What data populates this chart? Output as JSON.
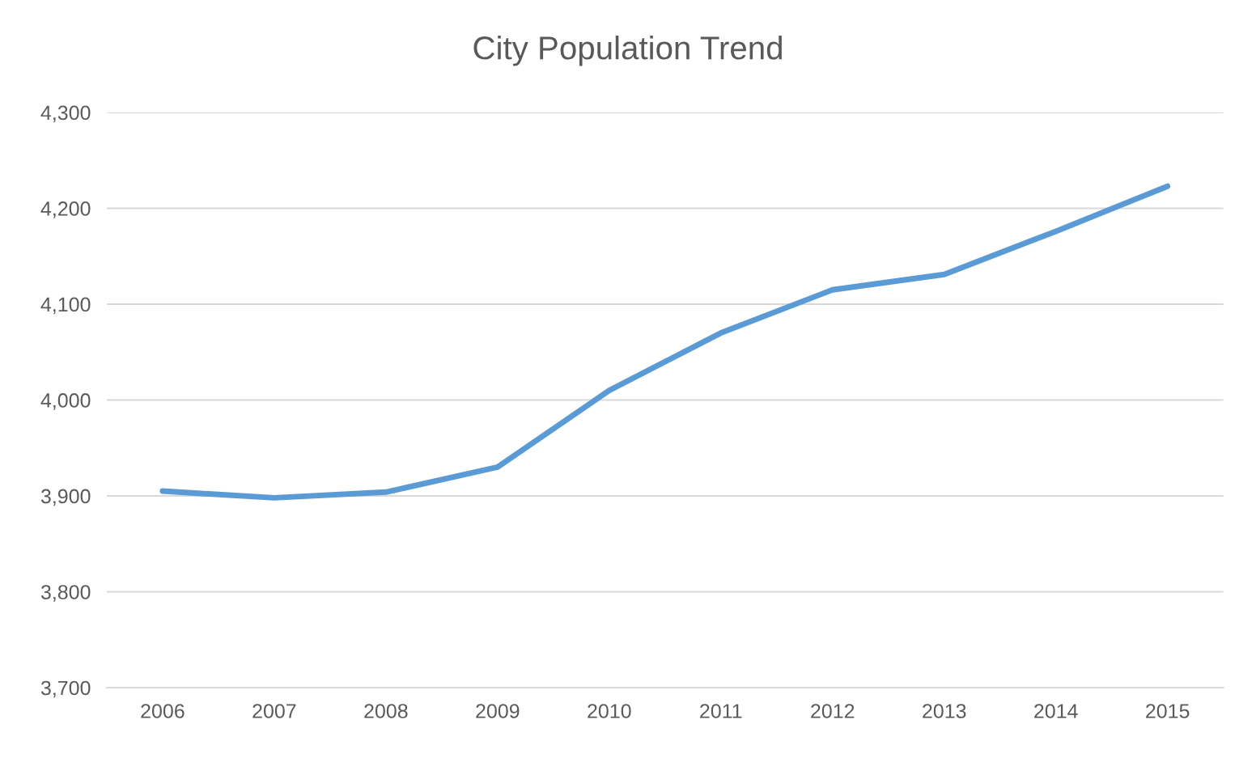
{
  "chart_data": {
    "type": "line",
    "title": "City Population Trend",
    "categories": [
      "2006",
      "2007",
      "2008",
      "2009",
      "2010",
      "2011",
      "2012",
      "2013",
      "2014",
      "2015"
    ],
    "series": [
      {
        "color": "#5b9bd5",
        "values": [
          3905,
          3898,
          3904,
          3930,
          4010,
          4070,
          4115,
          4131,
          4176,
          4223
        ]
      }
    ],
    "ylim": [
      3700,
      4300
    ],
    "yticks": [
      {
        "value": 3700,
        "label": "3,700"
      },
      {
        "value": 3800,
        "label": "3,800"
      },
      {
        "value": 3900,
        "label": "3,900"
      },
      {
        "value": 4000,
        "label": "4,000"
      },
      {
        "value": 4100,
        "label": "4,100"
      },
      {
        "value": 4200,
        "label": "4,200"
      },
      {
        "value": 4300,
        "label": "4,300"
      }
    ],
    "grid": "y",
    "marker": "none",
    "line_style": "solid"
  }
}
